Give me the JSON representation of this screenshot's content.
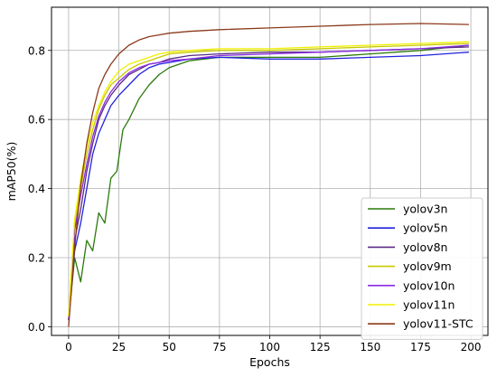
{
  "chart_data": {
    "type": "line",
    "title": "",
    "xlabel": "Epochs",
    "ylabel": "mAP50(%)",
    "xlim": [
      -8.5,
      208.5
    ],
    "ylim": [
      -0.025,
      0.925
    ],
    "x_ticks": [
      0,
      25,
      50,
      75,
      100,
      125,
      150,
      175,
      200
    ],
    "y_ticks": [
      0.0,
      0.2,
      0.4,
      0.6,
      0.8
    ],
    "x_tick_labels": [
      "0",
      "25",
      "50",
      "75",
      "100",
      "125",
      "150",
      "175",
      "200"
    ],
    "y_tick_labels": [
      "0.0",
      "0.2",
      "0.4",
      "0.6",
      "0.8"
    ],
    "grid": true,
    "legend_position": "lower-right",
    "series": [
      {
        "name": "yolov3n",
        "color": "#2b7a0b",
        "points": [
          [
            0,
            0.02
          ],
          [
            3,
            0.2
          ],
          [
            6,
            0.13
          ],
          [
            9,
            0.25
          ],
          [
            12,
            0.22
          ],
          [
            15,
            0.33
          ],
          [
            18,
            0.3
          ],
          [
            21,
            0.43
          ],
          [
            24,
            0.45
          ],
          [
            27,
            0.57
          ],
          [
            30,
            0.6
          ],
          [
            35,
            0.66
          ],
          [
            40,
            0.7
          ],
          [
            45,
            0.73
          ],
          [
            50,
            0.75
          ],
          [
            55,
            0.76
          ],
          [
            60,
            0.77
          ],
          [
            75,
            0.78
          ],
          [
            100,
            0.78
          ],
          [
            125,
            0.78
          ],
          [
            150,
            0.79
          ],
          [
            175,
            0.8
          ],
          [
            199,
            0.815
          ]
        ]
      },
      {
        "name": "yolov5n",
        "color": "#2222dd",
        "points": [
          [
            0,
            0.02
          ],
          [
            3,
            0.22
          ],
          [
            6,
            0.3
          ],
          [
            9,
            0.4
          ],
          [
            12,
            0.5
          ],
          [
            15,
            0.56
          ],
          [
            18,
            0.6
          ],
          [
            21,
            0.64
          ],
          [
            25,
            0.67
          ],
          [
            30,
            0.7
          ],
          [
            35,
            0.73
          ],
          [
            40,
            0.75
          ],
          [
            45,
            0.76
          ],
          [
            50,
            0.765
          ],
          [
            60,
            0.775
          ],
          [
            75,
            0.78
          ],
          [
            100,
            0.775
          ],
          [
            125,
            0.775
          ],
          [
            150,
            0.78
          ],
          [
            175,
            0.785
          ],
          [
            199,
            0.795
          ]
        ]
      },
      {
        "name": "yolov8n",
        "color": "#5b2a86",
        "points": [
          [
            0,
            0.02
          ],
          [
            3,
            0.25
          ],
          [
            6,
            0.34
          ],
          [
            9,
            0.45
          ],
          [
            12,
            0.53
          ],
          [
            15,
            0.6
          ],
          [
            18,
            0.64
          ],
          [
            21,
            0.67
          ],
          [
            25,
            0.7
          ],
          [
            30,
            0.73
          ],
          [
            35,
            0.745
          ],
          [
            40,
            0.76
          ],
          [
            45,
            0.765
          ],
          [
            50,
            0.775
          ],
          [
            60,
            0.785
          ],
          [
            75,
            0.79
          ],
          [
            100,
            0.795
          ],
          [
            125,
            0.795
          ],
          [
            150,
            0.8
          ],
          [
            175,
            0.805
          ],
          [
            199,
            0.81
          ]
        ]
      },
      {
        "name": "yolov9m",
        "color": "#c8c800",
        "points": [
          [
            0,
            0.03
          ],
          [
            3,
            0.3
          ],
          [
            6,
            0.4
          ],
          [
            9,
            0.5
          ],
          [
            12,
            0.57
          ],
          [
            15,
            0.63
          ],
          [
            18,
            0.67
          ],
          [
            21,
            0.7
          ],
          [
            25,
            0.72
          ],
          [
            30,
            0.745
          ],
          [
            35,
            0.76
          ],
          [
            40,
            0.77
          ],
          [
            45,
            0.78
          ],
          [
            50,
            0.79
          ],
          [
            60,
            0.795
          ],
          [
            75,
            0.8
          ],
          [
            100,
            0.8
          ],
          [
            125,
            0.805
          ],
          [
            150,
            0.81
          ],
          [
            175,
            0.815
          ],
          [
            199,
            0.82
          ]
        ]
      },
      {
        "name": "yolov10n",
        "color": "#8a2be2",
        "points": [
          [
            0,
            0.02
          ],
          [
            3,
            0.28
          ],
          [
            6,
            0.38
          ],
          [
            9,
            0.47
          ],
          [
            12,
            0.55
          ],
          [
            15,
            0.61
          ],
          [
            18,
            0.65
          ],
          [
            21,
            0.68
          ],
          [
            25,
            0.71
          ],
          [
            30,
            0.735
          ],
          [
            35,
            0.75
          ],
          [
            40,
            0.76
          ],
          [
            45,
            0.765
          ],
          [
            50,
            0.77
          ],
          [
            60,
            0.775
          ],
          [
            75,
            0.785
          ],
          [
            100,
            0.79
          ],
          [
            125,
            0.795
          ],
          [
            150,
            0.8
          ],
          [
            175,
            0.805
          ],
          [
            199,
            0.815
          ]
        ]
      },
      {
        "name": "yolov11n",
        "color": "#f0f000",
        "points": [
          [
            0,
            0.03
          ],
          [
            3,
            0.31
          ],
          [
            6,
            0.43
          ],
          [
            9,
            0.52
          ],
          [
            12,
            0.59
          ],
          [
            15,
            0.64
          ],
          [
            18,
            0.68
          ],
          [
            21,
            0.71
          ],
          [
            25,
            0.74
          ],
          [
            30,
            0.76
          ],
          [
            35,
            0.77
          ],
          [
            40,
            0.78
          ],
          [
            45,
            0.79
          ],
          [
            50,
            0.795
          ],
          [
            60,
            0.8
          ],
          [
            75,
            0.805
          ],
          [
            100,
            0.805
          ],
          [
            125,
            0.81
          ],
          [
            150,
            0.815
          ],
          [
            175,
            0.82
          ],
          [
            199,
            0.825
          ]
        ]
      },
      {
        "name": "yolov11-STC",
        "color": "#8b3a1a",
        "points": [
          [
            0,
            0.0
          ],
          [
            3,
            0.23
          ],
          [
            6,
            0.41
          ],
          [
            9,
            0.53
          ],
          [
            12,
            0.62
          ],
          [
            15,
            0.69
          ],
          [
            18,
            0.73
          ],
          [
            21,
            0.76
          ],
          [
            25,
            0.79
          ],
          [
            30,
            0.815
          ],
          [
            35,
            0.83
          ],
          [
            40,
            0.84
          ],
          [
            45,
            0.845
          ],
          [
            50,
            0.85
          ],
          [
            60,
            0.855
          ],
          [
            75,
            0.86
          ],
          [
            100,
            0.865
          ],
          [
            125,
            0.87
          ],
          [
            150,
            0.875
          ],
          [
            175,
            0.878
          ],
          [
            199,
            0.875
          ]
        ]
      }
    ]
  }
}
